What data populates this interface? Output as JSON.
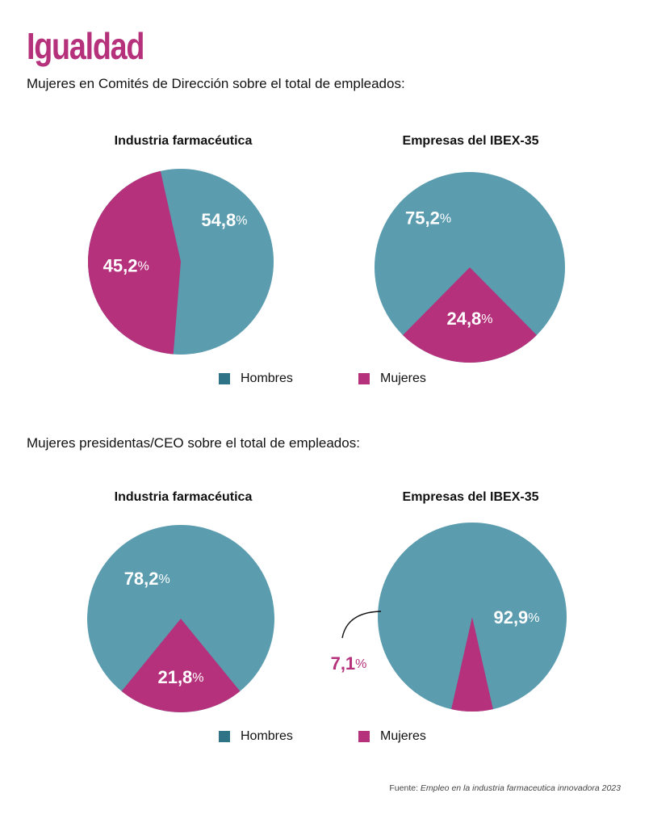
{
  "header": {
    "title": "Igualdad",
    "section1_subtitle": "Mujeres en Comités de Dirección sobre el total de empleados:",
    "section2_subtitle": "Mujeres presidentas/CEO sobre el total de empleados:"
  },
  "legend": {
    "hombres": "Hombres",
    "mujeres": "Mujeres"
  },
  "colors": {
    "hombres": "#5b9caf",
    "mujeres": "#b5317b",
    "legend_hombres": "#2e7486"
  },
  "source": {
    "prefix": "Fuente:",
    "text": "Empleo en la industria farmaceutica innovadora 2023"
  },
  "chart_data": [
    {
      "type": "pie",
      "title": "Industria farmacéutica",
      "slices": [
        {
          "name": "Hombres",
          "value": 54.8,
          "label": "54,8",
          "unit": "%"
        },
        {
          "name": "Mujeres",
          "value": 45.2,
          "label": "45,2",
          "unit": "%"
        }
      ]
    },
    {
      "type": "pie",
      "title": "Empresas del IBEX-35",
      "slices": [
        {
          "name": "Hombres",
          "value": 75.2,
          "label": "75,2",
          "unit": "%"
        },
        {
          "name": "Mujeres",
          "value": 24.8,
          "label": "24,8",
          "unit": "%"
        }
      ]
    },
    {
      "type": "pie",
      "title": "Industria farmacéutica",
      "slices": [
        {
          "name": "Hombres",
          "value": 78.2,
          "label": "78,2",
          "unit": "%"
        },
        {
          "name": "Mujeres",
          "value": 21.8,
          "label": "21,8",
          "unit": "%"
        }
      ]
    },
    {
      "type": "pie",
      "title": "Empresas del IBEX-35",
      "slices": [
        {
          "name": "Hombres",
          "value": 92.9,
          "label": "92,9",
          "unit": "%"
        },
        {
          "name": "Mujeres",
          "value": 7.1,
          "label": "7,1",
          "unit": "%"
        }
      ]
    }
  ]
}
